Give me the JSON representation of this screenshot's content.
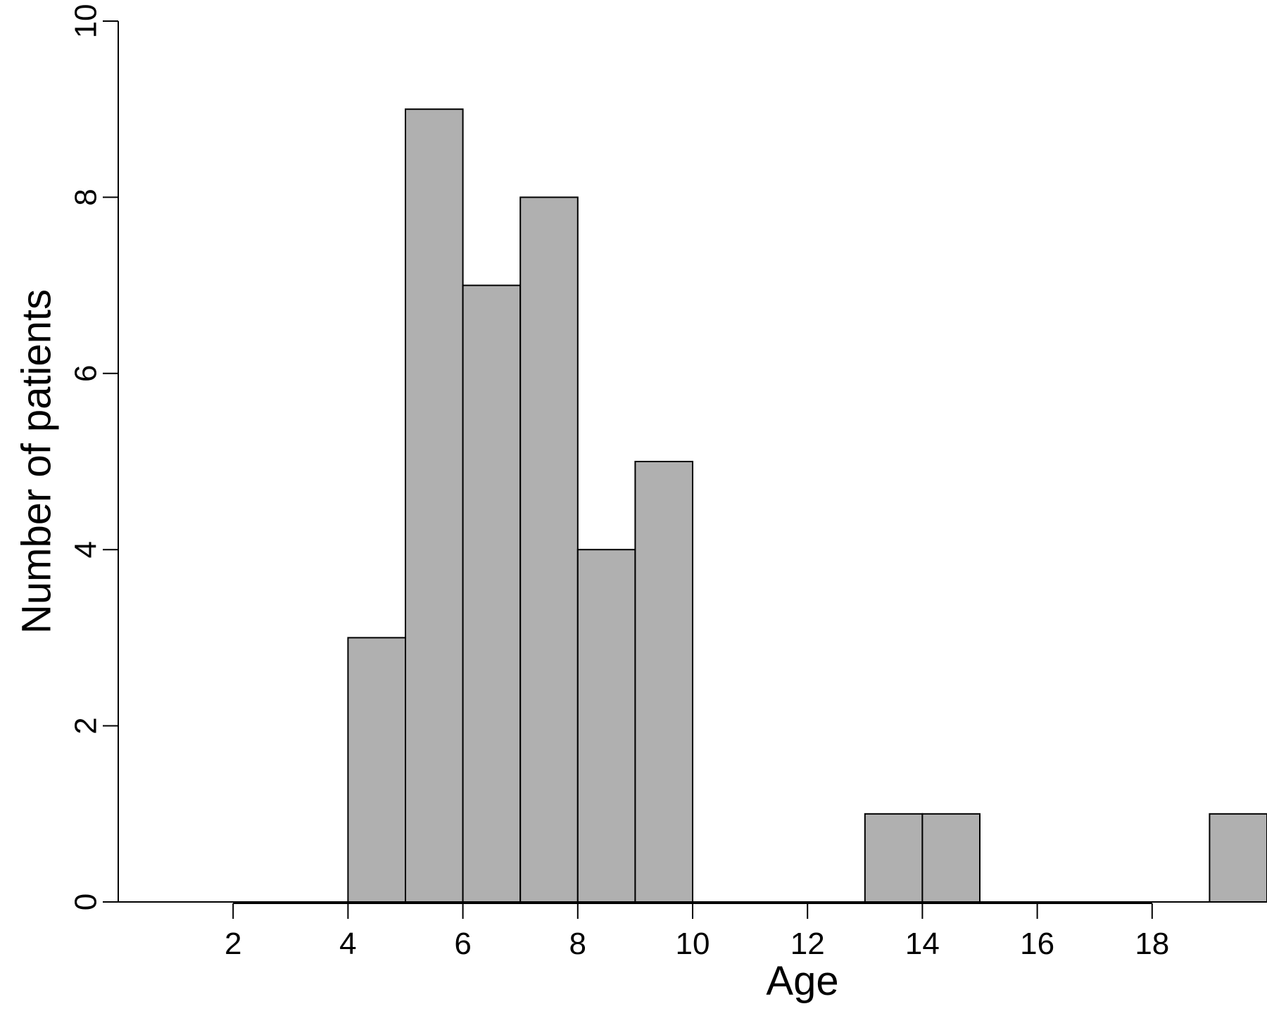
{
  "chart_data": {
    "type": "bar",
    "title": "",
    "xlabel": "Age",
    "ylabel": "Number of patients",
    "xlim": [
      0,
      20
    ],
    "ylim": [
      0,
      10
    ],
    "xticks": [
      2,
      4,
      6,
      8,
      10,
      12,
      14,
      16,
      18
    ],
    "yticks": [
      0,
      2,
      4,
      6,
      8,
      10
    ],
    "grid": false,
    "legend": "none",
    "bin_width": 1,
    "bins": [
      {
        "x0": 4,
        "x1": 5,
        "value": 3
      },
      {
        "x0": 5,
        "x1": 6,
        "value": 9
      },
      {
        "x0": 6,
        "x1": 7,
        "value": 7
      },
      {
        "x0": 7,
        "x1": 8,
        "value": 8
      },
      {
        "x0": 8,
        "x1": 9,
        "value": 4
      },
      {
        "x0": 9,
        "x1": 10,
        "value": 5
      },
      {
        "x0": 13,
        "x1": 14,
        "value": 1
      },
      {
        "x0": 14,
        "x1": 15,
        "value": 1
      },
      {
        "x0": 19,
        "x1": 20,
        "value": 1
      }
    ],
    "colors": {
      "bar_fill": "#b0b0b0",
      "bar_stroke": "#000000"
    }
  }
}
